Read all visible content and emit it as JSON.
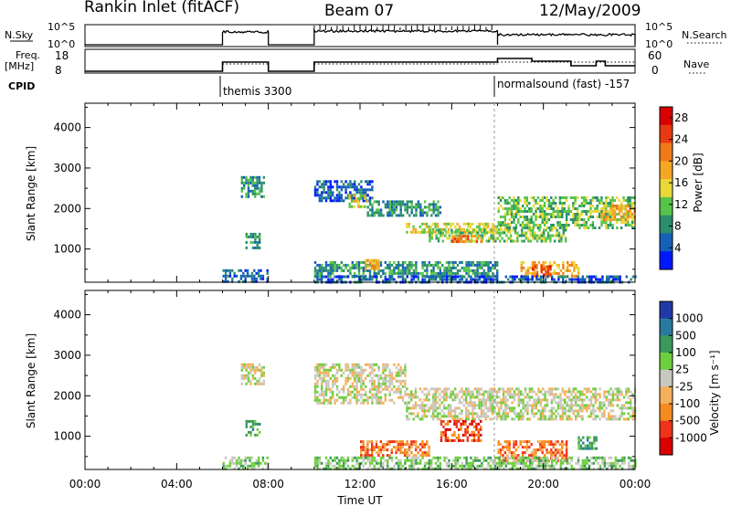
{
  "header": {
    "station": "Rankin Inlet (fitACF)",
    "beam": "Beam 07",
    "date": "12/May/2009"
  },
  "params": {
    "nsky_label": "N.Sky",
    "nsky_ticks": [
      "10^5",
      "10^0"
    ],
    "nsearch_label": "N.Search",
    "nsearch_ticks": [
      "10^5",
      "10^0"
    ],
    "freq_label": "Freq.",
    "freq_unit": "[MHz]",
    "freq_ticks": [
      "18",
      "8"
    ],
    "nave_label": "Nave",
    "nave_ticks": [
      "60",
      "0"
    ],
    "cpid_label": "CPID",
    "cpid_segments": [
      "themis 3300",
      "normalsound (fast) -157"
    ]
  },
  "colors": {
    "power": [
      "#0018ff",
      "#1560b8",
      "#2a8f6a",
      "#56c44a",
      "#e9d83a",
      "#f5a623",
      "#f07a1a",
      "#e83a12",
      "#d80000"
    ],
    "velocity": [
      "#d80000",
      "#f0331a",
      "#f58a1f",
      "#f5b05a",
      "#c8c8c0",
      "#6fce3e",
      "#3a9a5a",
      "#2a7aa0",
      "#1f3aa8"
    ]
  },
  "chart_data": [
    {
      "type": "heatmap",
      "quantity": "Power",
      "ylabel": "Slant Range [km]",
      "ylim": [
        180,
        4600
      ],
      "yticks": [
        "1000",
        "2000",
        "3000",
        "4000"
      ],
      "xlabel": "Time UT",
      "xlim": [
        "00:00",
        "24:00"
      ],
      "xticks": [
        "00:00",
        "04:00",
        "08:00",
        "12:00",
        "16:00",
        "20:00",
        "00:00"
      ],
      "colorbar_label": "Power [dB]",
      "colorbar_ticks": [
        "4",
        "8",
        "12",
        "16",
        "20",
        "24",
        "28"
      ],
      "colorbar_range": [
        0,
        30
      ],
      "echo_regions": [
        {
          "t0": 6.8,
          "t1": 7.8,
          "r0": 2300,
          "r1": 2800,
          "level": 2
        },
        {
          "t0": 7.0,
          "t1": 7.6,
          "r0": 1000,
          "r1": 1400,
          "level": 2
        },
        {
          "t0": 6.0,
          "t1": 8.0,
          "r0": 200,
          "r1": 500,
          "level": 1
        },
        {
          "t0": 10.0,
          "t1": 12.5,
          "r0": 2200,
          "r1": 2700,
          "level": 1
        },
        {
          "t0": 11.5,
          "t1": 12.3,
          "r0": 2050,
          "r1": 2350,
          "level": 4
        },
        {
          "t0": 12.3,
          "t1": 15.5,
          "r0": 1800,
          "r1": 2200,
          "level": 2
        },
        {
          "t0": 14.0,
          "t1": 18.5,
          "r0": 1400,
          "r1": 1650,
          "level": 4
        },
        {
          "t0": 15.0,
          "t1": 21.0,
          "r0": 1200,
          "r1": 1500,
          "level": 3
        },
        {
          "t0": 16.0,
          "t1": 17.3,
          "r0": 1150,
          "r1": 1350,
          "level": 6
        },
        {
          "t0": 10.0,
          "t1": 18.0,
          "r0": 300,
          "r1": 700,
          "level": 2
        },
        {
          "t0": 12.2,
          "t1": 12.8,
          "r0": 500,
          "r1": 750,
          "level": 5
        },
        {
          "t0": 19.0,
          "t1": 21.5,
          "r0": 300,
          "r1": 700,
          "level": 5
        },
        {
          "t0": 19.5,
          "t1": 20.3,
          "r0": 350,
          "r1": 600,
          "level": 7
        },
        {
          "t0": 18.0,
          "t1": 24.0,
          "r0": 1500,
          "r1": 2300,
          "level": 3
        },
        {
          "t0": 22.5,
          "t1": 24.0,
          "r0": 1700,
          "r1": 2100,
          "level": 5
        },
        {
          "t0": 10.0,
          "t1": 24.0,
          "r0": 200,
          "r1": 350,
          "level": 1
        }
      ]
    },
    {
      "type": "heatmap",
      "quantity": "Velocity",
      "ylabel": "Slant Range [km]",
      "ylim": [
        180,
        4600
      ],
      "yticks": [
        "1000",
        "2000",
        "3000",
        "4000"
      ],
      "xlabel": "Time UT",
      "xlim": [
        "00:00",
        "24:00"
      ],
      "xticks": [
        "00:00",
        "04:00",
        "08:00",
        "12:00",
        "16:00",
        "20:00",
        "00:00"
      ],
      "colorbar_label": "Velocity [m s⁻¹]",
      "colorbar_ticks": [
        "-1000",
        "-500",
        "-100",
        "-25",
        "25",
        "100",
        "500",
        "1000"
      ],
      "echo_regions": [
        {
          "t0": 6.8,
          "t1": 7.8,
          "r0": 2300,
          "r1": 2800,
          "level": 4
        },
        {
          "t0": 7.0,
          "t1": 7.6,
          "r0": 1000,
          "r1": 1400,
          "level": 6
        },
        {
          "t0": 6.0,
          "t1": 8.0,
          "r0": 200,
          "r1": 500,
          "level": 5
        },
        {
          "t0": 10.0,
          "t1": 14.0,
          "r0": 1800,
          "r1": 2800,
          "level": 4
        },
        {
          "t0": 14.0,
          "t1": 24.0,
          "r0": 1400,
          "r1": 2200,
          "level": 4
        },
        {
          "t0": 12.0,
          "t1": 15.0,
          "r0": 550,
          "r1": 900,
          "level": 2
        },
        {
          "t0": 15.5,
          "t1": 17.3,
          "r0": 900,
          "r1": 1400,
          "level": 1
        },
        {
          "t0": 18.0,
          "t1": 21.0,
          "r0": 400,
          "r1": 900,
          "level": 2
        },
        {
          "t0": 10.0,
          "t1": 24.0,
          "r0": 200,
          "r1": 500,
          "level": 5
        },
        {
          "t0": 21.5,
          "t1": 22.3,
          "r0": 700,
          "r1": 1000,
          "level": 6
        }
      ]
    }
  ]
}
